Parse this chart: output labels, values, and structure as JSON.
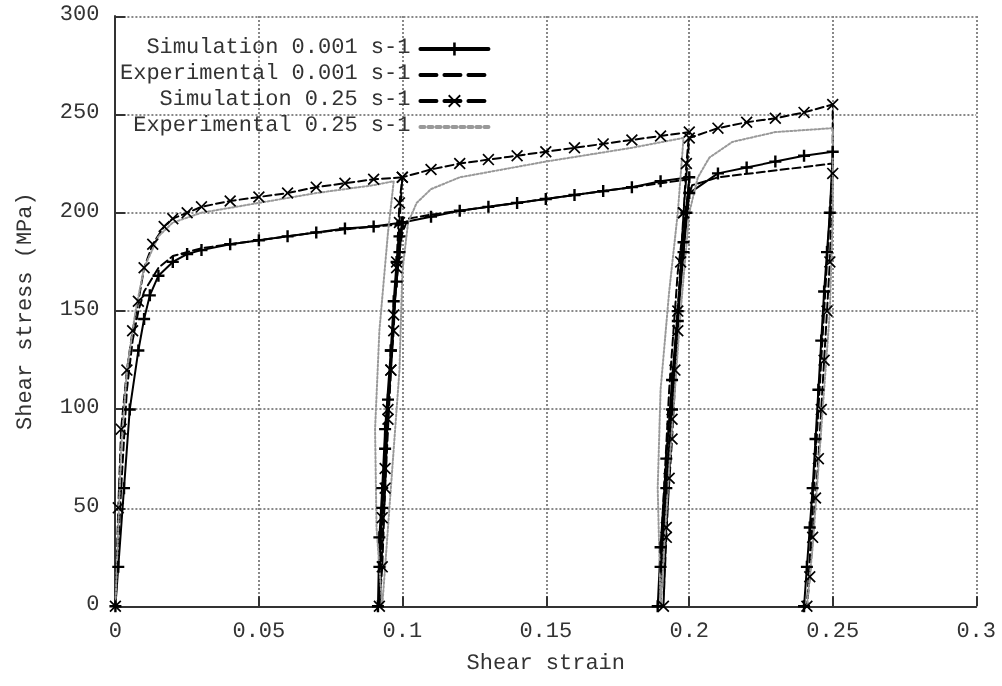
{
  "chart_data": {
    "type": "line",
    "xlabel": "Shear strain",
    "ylabel": "Shear stress (MPa)",
    "xlim": [
      0,
      0.3
    ],
    "ylim": [
      0,
      300
    ],
    "xticks": [
      0,
      0.05,
      0.1,
      0.15,
      0.2,
      0.25,
      0.3
    ],
    "yticks": [
      0,
      50,
      100,
      150,
      200,
      250,
      300
    ],
    "grid": true,
    "legend": "top left",
    "series": [
      {
        "name": "Simulation 0.001 s-1",
        "color": "#000000",
        "marker": "cross",
        "line_style": "solid",
        "x": [
          0,
          0.001,
          0.003,
          0.005,
          0.008,
          0.01,
          0.012,
          0.015,
          0.02,
          0.025,
          0.03,
          0.04,
          0.05,
          0.06,
          0.07,
          0.08,
          0.09,
          0.1,
          0.099,
          0.098,
          0.096,
          0.094,
          0.093,
          0.092,
          0.0915,
          0.092,
          0.093,
          0.094,
          0.095,
          0.096,
          0.097,
          0.098,
          0.099,
          0.1,
          0.11,
          0.12,
          0.13,
          0.14,
          0.15,
          0.16,
          0.17,
          0.18,
          0.19,
          0.2,
          0.199,
          0.198,
          0.196,
          0.194,
          0.192,
          0.19,
          0.189,
          0.19,
          0.192,
          0.194,
          0.196,
          0.198,
          0.2,
          0.21,
          0.22,
          0.23,
          0.24,
          0.25,
          0.249,
          0.248,
          0.247,
          0.246,
          0.245,
          0.244,
          0.243,
          0.242,
          0.241,
          0.24
        ],
        "values": [
          0,
          20,
          60,
          100,
          130,
          146,
          158,
          168,
          175,
          179,
          181,
          184,
          186,
          188,
          190,
          192,
          193,
          195,
          180,
          165,
          130,
          90,
          60,
          35,
          0,
          20,
          50,
          80,
          105,
          130,
          155,
          175,
          188,
          195,
          198,
          201,
          203,
          205,
          207,
          209,
          211,
          213,
          216,
          218,
          200,
          185,
          150,
          115,
          75,
          30,
          0,
          20,
          60,
          100,
          145,
          180,
          210,
          220,
          223,
          226,
          229,
          231,
          200,
          180,
          160,
          135,
          110,
          85,
          60,
          40,
          20,
          0
        ]
      },
      {
        "name": "Experimental 0.001 s-1",
        "color": "#000000",
        "marker": "none",
        "line_style": "dashed",
        "x": [
          0,
          0.002,
          0.004,
          0.006,
          0.008,
          0.01,
          0.015,
          0.02,
          0.03,
          0.05,
          0.07,
          0.09,
          0.1,
          0.098,
          0.096,
          0.094,
          0.092,
          0.0925,
          0.095,
          0.097,
          0.099,
          0.1,
          0.102,
          0.11,
          0.15,
          0.2,
          0.198,
          0.195,
          0.192,
          0.19,
          0.1905,
          0.193,
          0.196,
          0.199,
          0.201,
          0.21,
          0.25,
          0.249,
          0.247,
          0.245,
          0.243,
          0.241
        ],
        "values": [
          0,
          60,
          110,
          135,
          150,
          160,
          172,
          178,
          182,
          186,
          190,
          193,
          194,
          170,
          120,
          60,
          0,
          40,
          100,
          150,
          180,
          190,
          197,
          199,
          207,
          217,
          190,
          130,
          60,
          0,
          40,
          110,
          170,
          205,
          214,
          218,
          225,
          200,
          150,
          100,
          50,
          0
        ]
      },
      {
        "name": "Simulation 0.25 s-1",
        "color": "#000000",
        "marker": "cross",
        "line_style": "dashed",
        "x": [
          0,
          0.001,
          0.002,
          0.004,
          0.006,
          0.008,
          0.01,
          0.013,
          0.017,
          0.02,
          0.025,
          0.03,
          0.04,
          0.05,
          0.06,
          0.07,
          0.08,
          0.09,
          0.1,
          0.099,
          0.098,
          0.097,
          0.096,
          0.095,
          0.094,
          0.093,
          0.092,
          0.093,
          0.094,
          0.095,
          0.096,
          0.097,
          0.098,
          0.099,
          0.1,
          0.11,
          0.12,
          0.13,
          0.14,
          0.15,
          0.16,
          0.17,
          0.18,
          0.19,
          0.2,
          0.199,
          0.198,
          0.197,
          0.196,
          0.195,
          0.194,
          0.193,
          0.192,
          0.191,
          0.192,
          0.194,
          0.196,
          0.198,
          0.2,
          0.21,
          0.22,
          0.23,
          0.24,
          0.25,
          0.25,
          0.249,
          0.248,
          0.247,
          0.246,
          0.245,
          0.244,
          0.243,
          0.242,
          0.241
        ],
        "values": [
          0,
          50,
          90,
          120,
          140,
          155,
          172,
          184,
          193,
          197,
          200,
          203,
          206,
          208,
          210,
          213,
          215,
          217,
          218,
          195,
          172,
          148,
          120,
          95,
          70,
          45,
          0,
          20,
          60,
          100,
          120,
          140,
          175,
          205,
          218,
          222,
          225,
          227,
          229,
          231,
          233,
          235,
          237,
          239,
          241,
          225,
          200,
          175,
          150,
          120,
          95,
          65,
          35,
          0,
          40,
          85,
          140,
          200,
          238,
          243,
          246,
          248,
          251,
          255,
          220,
          175,
          150,
          125,
          100,
          75,
          55,
          35,
          15,
          0
        ]
      },
      {
        "name": "Experimental 0.25 s-1",
        "color": "#999999",
        "marker": "none",
        "line_style": "dotted",
        "x": [
          0,
          0.002,
          0.004,
          0.007,
          0.01,
          0.015,
          0.02,
          0.03,
          0.05,
          0.07,
          0.09,
          0.097,
          0.095,
          0.092,
          0.0905,
          0.091,
          0.093,
          0.096,
          0.099,
          0.1,
          0.102,
          0.105,
          0.11,
          0.12,
          0.15,
          0.18,
          0.198,
          0.196,
          0.193,
          0.19,
          0.189,
          0.19,
          0.193,
          0.197,
          0.2,
          0.203,
          0.207,
          0.215,
          0.23,
          0.25,
          0.25,
          0.249,
          0.247,
          0.245,
          0.243,
          0.241
        ],
        "values": [
          0,
          80,
          120,
          150,
          172,
          188,
          195,
          200,
          205,
          210,
          214,
          216,
          190,
          140,
          90,
          40,
          0,
          60,
          120,
          170,
          195,
          205,
          212,
          218,
          226,
          233,
          238,
          200,
          160,
          110,
          60,
          0,
          70,
          150,
          200,
          218,
          228,
          236,
          241,
          243,
          200,
          150,
          110,
          70,
          30,
          0
        ]
      }
    ]
  }
}
